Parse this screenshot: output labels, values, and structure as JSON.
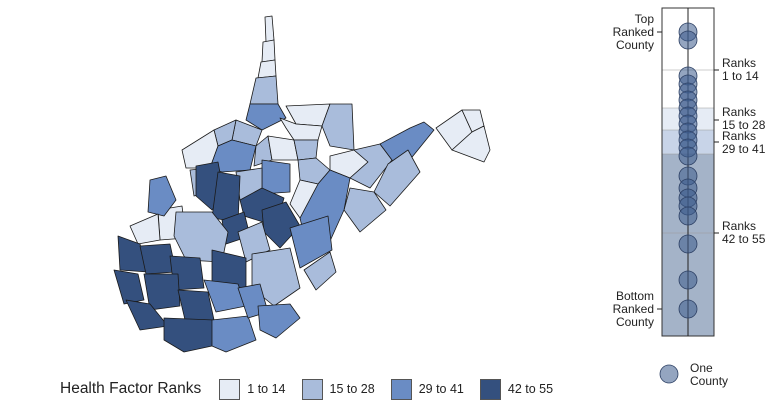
{
  "legend": {
    "title": "Health Factor Ranks",
    "classes": [
      {
        "label": "1 to 14",
        "color": "#e6ecf5"
      },
      {
        "label": "15 to 28",
        "color": "#a9bcdb"
      },
      {
        "label": "29 to 41",
        "color": "#6a8cc4"
      },
      {
        "label": "42 to 55",
        "color": "#34507e"
      }
    ]
  },
  "rank_strip": {
    "top_label": [
      "Top",
      "Ranked",
      "County"
    ],
    "bottom_label": [
      "Bottom",
      "Ranked",
      "County"
    ],
    "band_labels": [
      [
        "Ranks",
        "1 to 14"
      ],
      [
        "Ranks",
        "15 to 28"
      ],
      [
        "Ranks",
        "29 to 41"
      ],
      [
        "Ranks",
        "42 to 55"
      ]
    ],
    "dot_legend": [
      "One",
      "County"
    ],
    "dot_color": "#3d5b8c"
  }
}
